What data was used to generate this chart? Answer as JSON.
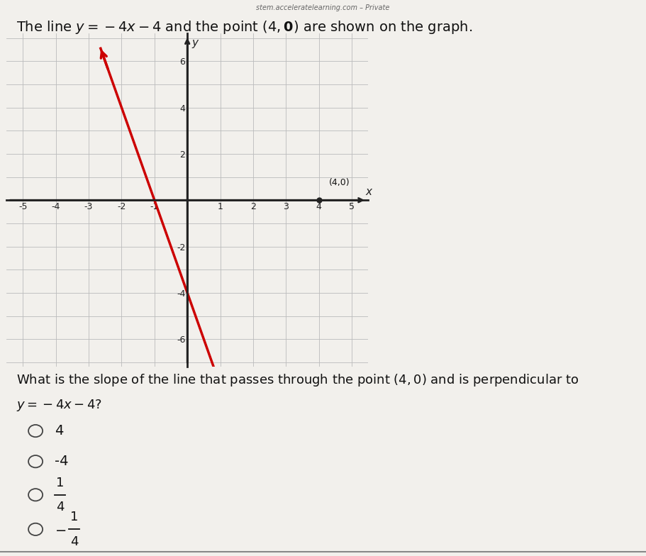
{
  "bg_color": "#e8e6e0",
  "page_color": "#f0eee8",
  "title_text": "The line $y = -4x - 4$ and the point $(4,\\mathbf{0})$ are shown on the graph.",
  "watermark": "stem.acceleratelearning.com – Private",
  "graph": {
    "xlim": [
      -5.5,
      5.5
    ],
    "ylim": [
      -7.2,
      7.2
    ],
    "xticks": [
      -5,
      -4,
      -3,
      -2,
      -1,
      0,
      1,
      2,
      3,
      4,
      5
    ],
    "yticks": [
      -6,
      -4,
      -2,
      0,
      2,
      4,
      6
    ],
    "line_color": "#cc0000",
    "line_x_start": -2.65,
    "line_x_end": 0.82,
    "point_x": 4,
    "point_y": 0,
    "point_color": "#222222",
    "point_label": "(4,0)"
  },
  "question_line1": "What is the slope of the line that passes through the point $(4, 0)$ and is perpendicular to",
  "question_line2": "$y = -4x - 4$?",
  "options": [
    {
      "label": "4",
      "fraction": false
    },
    {
      "label": "-4",
      "fraction": false
    },
    {
      "label": "1/4",
      "fraction": true,
      "num": "1",
      "den": "4",
      "neg": false
    },
    {
      "label": "-1/4",
      "fraction": true,
      "num": "1",
      "den": "4",
      "neg": true
    }
  ],
  "tick_fontsize": 9,
  "axis_label_fontsize": 11,
  "title_fontsize": 14,
  "question_fontsize": 13,
  "option_fontsize": 14
}
